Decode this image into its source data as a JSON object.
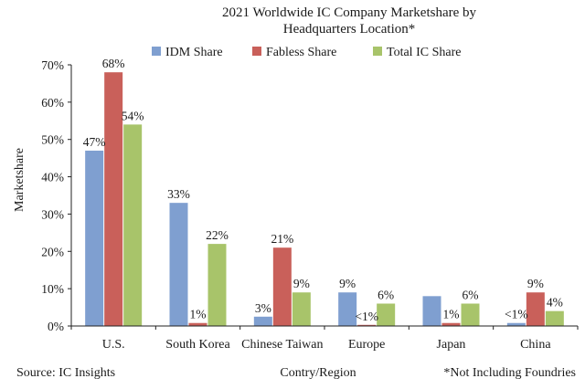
{
  "chart_data": {
    "type": "bar",
    "title": "2021 Worldwide IC Company Marketshare by",
    "subtitle": "Headquarters Location*",
    "xlabel": "Contry/Region",
    "ylabel": "Marketshare",
    "ylim": [
      0,
      70
    ],
    "yticks": [
      0,
      10,
      20,
      30,
      40,
      50,
      60,
      70
    ],
    "ytick_labels": [
      "0%",
      "10%",
      "20%",
      "30%",
      "40%",
      "50%",
      "60%",
      "70%"
    ],
    "legend_position": "top-right",
    "grid": false,
    "categories": [
      "U.S.",
      "South Korea",
      "Chinese Taiwan",
      "Europe",
      "Japan",
      "China"
    ],
    "series": [
      {
        "name": "IDM Share",
        "color": "#7f9fd0",
        "values": [
          47,
          33,
          2.5,
          9,
          8,
          0.8
        ],
        "labels": [
          "47%",
          "33%",
          "3%",
          "9%",
          "",
          "<1%"
        ]
      },
      {
        "name": "Fabless Share",
        "color": "#c9605a",
        "values": [
          68,
          0.8,
          21,
          0.3,
          0.8,
          9
        ],
        "labels": [
          "68%",
          "1%",
          "21%",
          "<1%",
          "1%",
          "9%"
        ]
      },
      {
        "name": "Total IC Share",
        "color": "#a8c46a",
        "values": [
          54,
          22,
          9,
          6,
          6,
          4
        ],
        "labels": [
          "54%",
          "22%",
          "9%",
          "6%",
          "6%",
          "4%"
        ]
      }
    ]
  },
  "footer": {
    "source": "Source: IC Insights",
    "note": "*Not Including Foundries"
  }
}
